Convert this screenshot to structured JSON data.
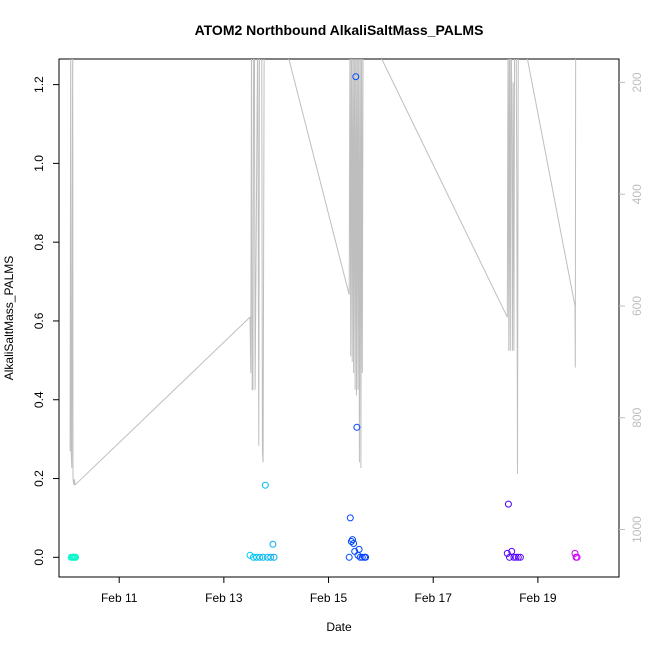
{
  "chart_data": {
    "type": "scatter",
    "title": "ATOM2 Northbound AlkaliSaltMass_PALMS",
    "xlabel": "Date",
    "ylabel": "AlkaliSaltMass_PALMS",
    "xlim": [
      "2017-02-09 20:24",
      "2017-02-20 13:12"
    ],
    "ylim": [
      -0.05,
      1.265
    ],
    "yticks": [
      0.0,
      0.2,
      0.4,
      0.6,
      0.8,
      1.0,
      1.2
    ],
    "xticks": [
      "2017-02-11",
      "2017-02-13",
      "2017-02-15",
      "2017-02-17",
      "2017-02-19"
    ],
    "xtick_labels": [
      "Feb 11",
      "Feb 13",
      "Feb 15",
      "Feb 17",
      "Feb 19"
    ],
    "right_axis": {
      "label": "",
      "color": "#bebebe",
      "reversed": true,
      "ticks": [
        200,
        400,
        600,
        800,
        1000
      ],
      "ylim": [
        1085,
        158
      ]
    },
    "marker": "open-circle",
    "color_scale": [
      "#00ffcc",
      "#00ccff",
      "#0066ff",
      "#3300ff",
      "#cc00ff"
    ],
    "points": [
      {
        "x": "2017-02-10 02:00",
        "y": 0.0,
        "c": "#00f5c8"
      },
      {
        "x": "2017-02-10 02:30",
        "y": 0.0,
        "c": "#00f5c8"
      },
      {
        "x": "2017-02-10 03:00",
        "y": 0.0,
        "c": "#00f5c8"
      },
      {
        "x": "2017-02-10 03:30",
        "y": 0.0,
        "c": "#00f5c8"
      },
      {
        "x": "2017-02-10 04:00",
        "y": 0.0,
        "c": "#00f5c8"
      },
      {
        "x": "2017-02-13 12:00",
        "y": 0.005,
        "c": "#00c8f0"
      },
      {
        "x": "2017-02-13 13:30",
        "y": 0.0,
        "c": "#00c8f0"
      },
      {
        "x": "2017-02-13 15:00",
        "y": 0.0,
        "c": "#00c0f0"
      },
      {
        "x": "2017-02-13 16:30",
        "y": 0.0,
        "c": "#00c0f0"
      },
      {
        "x": "2017-02-13 18:00",
        "y": 0.0,
        "c": "#00b8f0"
      },
      {
        "x": "2017-02-13 19:00",
        "y": 0.183,
        "c": "#00b8f0"
      },
      {
        "x": "2017-02-13 20:00",
        "y": 0.0,
        "c": "#00b0f0"
      },
      {
        "x": "2017-02-13 21:30",
        "y": 0.0,
        "c": "#00b0f0"
      },
      {
        "x": "2017-02-13 22:30",
        "y": 0.033,
        "c": "#00a8f0"
      },
      {
        "x": "2017-02-13 23:00",
        "y": 0.0,
        "c": "#00a8f0"
      },
      {
        "x": "2017-02-15 09:30",
        "y": 0.0,
        "c": "#0050ff"
      },
      {
        "x": "2017-02-15 10:00",
        "y": 0.1,
        "c": "#0048ff"
      },
      {
        "x": "2017-02-15 10:30",
        "y": 0.04,
        "c": "#0048ff"
      },
      {
        "x": "2017-02-15 11:00",
        "y": 0.045,
        "c": "#0048ff"
      },
      {
        "x": "2017-02-15 11:30",
        "y": 0.035,
        "c": "#0048ff"
      },
      {
        "x": "2017-02-15 12:00",
        "y": 0.015,
        "c": "#0048ff"
      },
      {
        "x": "2017-02-15 12:30",
        "y": 1.22,
        "c": "#0044ff"
      },
      {
        "x": "2017-02-15 13:00",
        "y": 0.33,
        "c": "#0044ff"
      },
      {
        "x": "2017-02-15 13:30",
        "y": 0.005,
        "c": "#0044ff"
      },
      {
        "x": "2017-02-15 14:00",
        "y": 0.02,
        "c": "#0044ff"
      },
      {
        "x": "2017-02-15 14:30",
        "y": 0.0,
        "c": "#0040ff"
      },
      {
        "x": "2017-02-15 15:30",
        "y": 0.0,
        "c": "#0040ff"
      },
      {
        "x": "2017-02-15 16:30",
        "y": 0.0,
        "c": "#0040ff"
      },
      {
        "x": "2017-02-15 17:00",
        "y": 0.0,
        "c": "#003cff"
      },
      {
        "x": "2017-02-18 10:00",
        "y": 0.01,
        "c": "#5000ff"
      },
      {
        "x": "2017-02-18 10:30",
        "y": 0.135,
        "c": "#5000ff"
      },
      {
        "x": "2017-02-18 11:00",
        "y": 0.0,
        "c": "#5000ff"
      },
      {
        "x": "2017-02-18 12:00",
        "y": 0.015,
        "c": "#5400ff"
      },
      {
        "x": "2017-02-18 13:00",
        "y": 0.0,
        "c": "#5400ff"
      },
      {
        "x": "2017-02-18 14:00",
        "y": 0.0,
        "c": "#5800ff"
      },
      {
        "x": "2017-02-18 15:00",
        "y": 0.0,
        "c": "#5800ff"
      },
      {
        "x": "2017-02-18 16:00",
        "y": 0.0,
        "c": "#5c00ff"
      },
      {
        "x": "2017-02-19 17:00",
        "y": 0.01,
        "c": "#c800f5"
      },
      {
        "x": "2017-02-19 17:30",
        "y": 0.0,
        "c": "#d000f5"
      },
      {
        "x": "2017-02-19 18:00",
        "y": 0.0,
        "c": "#d000f5"
      }
    ],
    "altitude_series": {
      "color": "#bebebe",
      "x": [
        "2017-02-10 01:30",
        "2017-02-10 01:45",
        "2017-02-10 02:00",
        "2017-02-10 02:15",
        "2017-02-10 02:40",
        "2017-02-10 02:50",
        "2017-02-10 03:10",
        "2017-02-10 03:30",
        "2017-02-10 03:40",
        "2017-02-10 03:50",
        "2017-02-13 12:00",
        "2017-02-13 12:20",
        "2017-02-13 12:40",
        "2017-02-13 13:00",
        "2017-02-13 13:20",
        "2017-02-13 13:40",
        "2017-02-13 14:00",
        "2017-02-13 14:20",
        "2017-02-13 15:30",
        "2017-02-13 16:00",
        "2017-02-13 16:20",
        "2017-02-13 17:00",
        "2017-02-13 17:20",
        "2017-02-13 17:40",
        "2017-02-13 18:00",
        "2017-02-13 18:30",
        "2017-02-13 19:00",
        "2017-02-13 19:20",
        "2017-02-13 20:00",
        "2017-02-14 02:00",
        "2017-02-15 09:30",
        "2017-02-15 09:50",
        "2017-02-15 10:10",
        "2017-02-15 10:30",
        "2017-02-15 10:50",
        "2017-02-15 11:10",
        "2017-02-15 11:30",
        "2017-02-15 11:50",
        "2017-02-15 12:10",
        "2017-02-15 12:30",
        "2017-02-15 12:50",
        "2017-02-15 13:10",
        "2017-02-15 13:30",
        "2017-02-15 13:50",
        "2017-02-15 14:10",
        "2017-02-15 14:30",
        "2017-02-15 14:50",
        "2017-02-15 15:10",
        "2017-02-15 15:30",
        "2017-02-15 15:50",
        "2017-02-15 16:10",
        "2017-02-15 16:30",
        "2017-02-15 16:50",
        "2017-02-15 17:10",
        "2017-02-18 10:00",
        "2017-02-18 10:20",
        "2017-02-18 10:40",
        "2017-02-18 11:00",
        "2017-02-18 11:20",
        "2017-02-18 11:40",
        "2017-02-18 12:00",
        "2017-02-18 12:20",
        "2017-02-18 12:40",
        "2017-02-18 13:00",
        "2017-02-18 13:20",
        "2017-02-18 13:40",
        "2017-02-18 14:00",
        "2017-02-18 14:20",
        "2017-02-18 14:40",
        "2017-02-18 15:00",
        "2017-02-18 15:20",
        "2017-02-18 15:40",
        "2017-02-18 16:00",
        "2017-02-18 16:20",
        "2017-02-19 17:00",
        "2017-02-19 17:10",
        "2017-02-19 17:20",
        "2017-02-19 17:40"
      ],
      "y": [
        860,
        100,
        860,
        890,
        100,
        910,
        920,
        910,
        920,
        920,
        620,
        720,
        100,
        750,
        750,
        100,
        100,
        750,
        100,
        850,
        100,
        100,
        100,
        860,
        880,
        100,
        100,
        100,
        100,
        100,
        580,
        100,
        690,
        100,
        700,
        100,
        720,
        100,
        750,
        100,
        760,
        100,
        750,
        100,
        880,
        100,
        890,
        100,
        720,
        100,
        100,
        100,
        100,
        100,
        620,
        100,
        680,
        100,
        680,
        100,
        200,
        680,
        200,
        680,
        100,
        100,
        100,
        380,
        900,
        100,
        100,
        100,
        100,
        100,
        600,
        710,
        100,
        100
      ]
    }
  }
}
